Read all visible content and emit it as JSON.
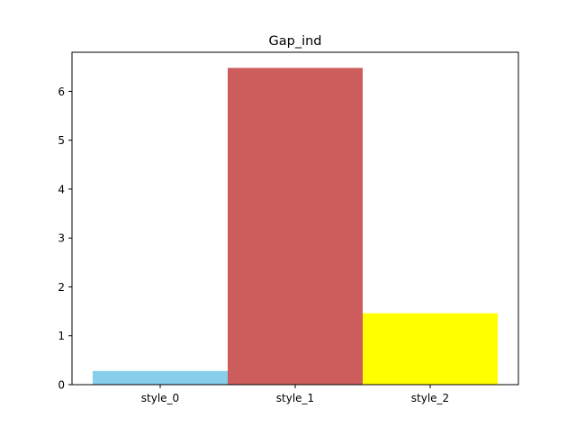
{
  "chart_data": {
    "type": "bar",
    "title": "Gap_ind",
    "xlabel": "",
    "ylabel": "",
    "categories": [
      "style_0",
      "style_1",
      "style_2"
    ],
    "values": [
      0.28,
      6.48,
      1.46
    ],
    "colors": [
      "#87ceeb",
      "#cd5c5c",
      "#ffff00"
    ],
    "ylim": [
      0,
      6.8
    ],
    "yticks": [
      0,
      1,
      2,
      3,
      4,
      5,
      6
    ],
    "grid": false,
    "legend": "none"
  }
}
